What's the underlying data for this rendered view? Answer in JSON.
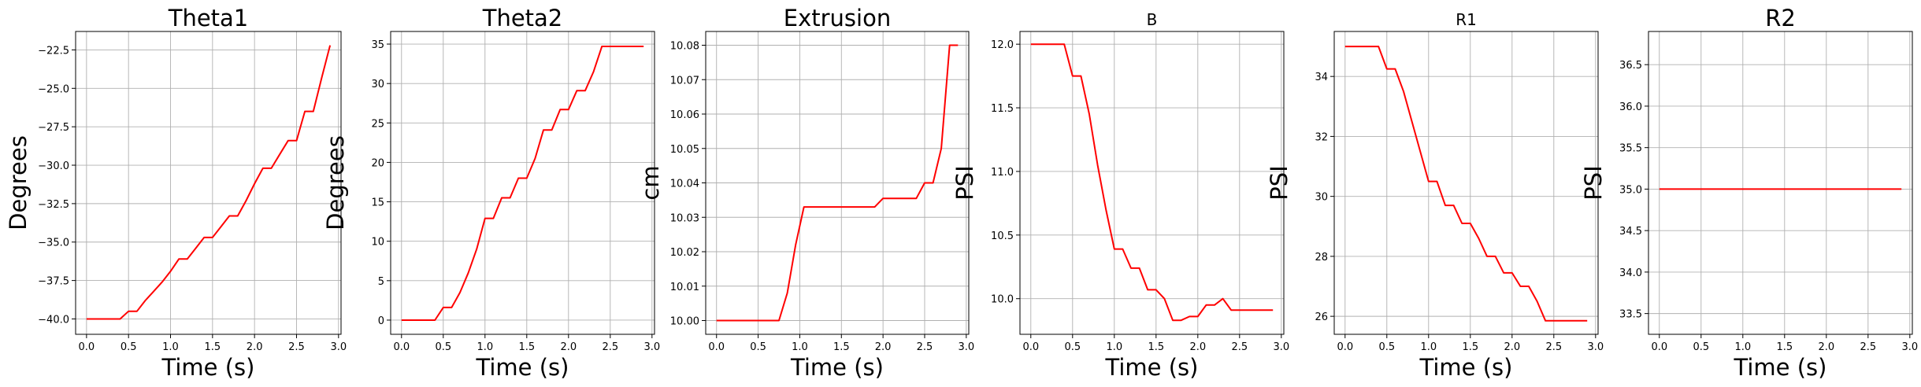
{
  "chart_data": [
    {
      "type": "line",
      "title": "Theta1",
      "xlabel": "Time (s)",
      "ylabel": "Degrees",
      "xlim": [
        -0.13,
        3.03
      ],
      "ylim": [
        -41.0,
        -21.3
      ],
      "xticks": [
        0.0,
        0.5,
        1.0,
        1.5,
        2.0,
        2.5,
        3.0
      ],
      "xtick_labels": [
        "0.0",
        "0.5",
        "1.0",
        "1.5",
        "2.0",
        "2.5",
        "3.0"
      ],
      "yticks": [
        -40.0,
        -37.5,
        -35.0,
        -32.5,
        -30.0,
        -27.5,
        -25.0,
        -22.5
      ],
      "ytick_labels": [
        "−40.0",
        "−37.5",
        "−35.0",
        "−32.5",
        "−30.0",
        "−27.5",
        "−25.0",
        "−22.5"
      ],
      "grid": true,
      "series": [
        {
          "color": "#ff0000",
          "x": [
            0.0,
            0.1,
            0.2,
            0.3,
            0.4,
            0.5,
            0.6,
            0.7,
            0.8,
            0.9,
            1.0,
            1.1,
            1.2,
            1.3,
            1.4,
            1.5,
            1.6,
            1.7,
            1.8,
            1.9,
            2.0,
            2.1,
            2.2,
            2.3,
            2.4,
            2.5,
            2.6,
            2.7,
            2.8,
            2.9
          ],
          "y": [
            -40.0,
            -40.0,
            -40.0,
            -40.0,
            -40.0,
            -39.5,
            -39.5,
            -38.8,
            -38.2,
            -37.6,
            -36.9,
            -36.1,
            -36.1,
            -35.4,
            -34.7,
            -34.7,
            -34.0,
            -33.3,
            -33.3,
            -32.3,
            -31.2,
            -30.2,
            -30.2,
            -29.3,
            -28.4,
            -28.4,
            -26.5,
            -26.5,
            -24.3,
            -22.2
          ]
        }
      ]
    },
    {
      "type": "line",
      "title": "Theta2",
      "xlabel": "Time (s)",
      "ylabel": "Degrees",
      "xlim": [
        -0.13,
        3.03
      ],
      "ylim": [
        -1.8,
        36.6
      ],
      "xticks": [
        0.0,
        0.5,
        1.0,
        1.5,
        2.0,
        2.5,
        3.0
      ],
      "xtick_labels": [
        "0.0",
        "0.5",
        "1.0",
        "1.5",
        "2.0",
        "2.5",
        "3.0"
      ],
      "yticks": [
        0,
        5,
        10,
        15,
        20,
        25,
        30,
        35
      ],
      "ytick_labels": [
        "0",
        "5",
        "10",
        "15",
        "20",
        "25",
        "30",
        "35"
      ],
      "grid": true,
      "series": [
        {
          "color": "#ff0000",
          "x": [
            0.0,
            0.1,
            0.2,
            0.3,
            0.4,
            0.5,
            0.6,
            0.7,
            0.8,
            0.9,
            1.0,
            1.1,
            1.2,
            1.3,
            1.4,
            1.5,
            1.6,
            1.7,
            1.8,
            1.9,
            2.0,
            2.1,
            2.2,
            2.3,
            2.4,
            2.5,
            2.6,
            2.7,
            2.8,
            2.9
          ],
          "y": [
            0.0,
            0.0,
            0.0,
            0.0,
            0.0,
            1.6,
            1.6,
            3.5,
            6.0,
            9.0,
            12.9,
            12.9,
            15.5,
            15.5,
            18.0,
            18.0,
            20.5,
            24.1,
            24.1,
            26.7,
            26.7,
            29.1,
            29.1,
            31.5,
            34.7,
            34.7,
            34.7,
            34.7,
            34.7,
            34.7
          ]
        }
      ]
    },
    {
      "type": "line",
      "title": "Extrusion",
      "xlabel": "Time (s)",
      "ylabel": "cm",
      "xlim": [
        -0.13,
        3.03
      ],
      "ylim": [
        9.996,
        10.084
      ],
      "xticks": [
        0.0,
        0.5,
        1.0,
        1.5,
        2.0,
        2.5,
        3.0
      ],
      "xtick_labels": [
        "0.0",
        "0.5",
        "1.0",
        "1.5",
        "2.0",
        "2.5",
        "3.0"
      ],
      "yticks": [
        10.0,
        10.01,
        10.02,
        10.03,
        10.04,
        10.05,
        10.06,
        10.07,
        10.08
      ],
      "ytick_labels": [
        "10.00",
        "10.01",
        "10.02",
        "10.03",
        "10.04",
        "10.05",
        "10.06",
        "10.07",
        "10.08"
      ],
      "grid": true,
      "series": [
        {
          "color": "#ff0000",
          "x": [
            0.0,
            0.2,
            0.4,
            0.6,
            0.75,
            0.85,
            0.95,
            1.05,
            1.1,
            1.3,
            1.5,
            1.7,
            1.9,
            2.0,
            2.2,
            2.4,
            2.5,
            2.6,
            2.7,
            2.8,
            2.9
          ],
          "y": [
            10.0,
            10.0,
            10.0,
            10.0,
            10.0,
            10.008,
            10.022,
            10.033,
            10.033,
            10.033,
            10.033,
            10.033,
            10.033,
            10.0355,
            10.0355,
            10.0355,
            10.04,
            10.04,
            10.05,
            10.08,
            10.08
          ]
        }
      ]
    },
    {
      "type": "line",
      "title": "B",
      "xlabel": "Time (s)",
      "ylabel": "PSI",
      "xlim": [
        -0.13,
        3.03
      ],
      "ylim": [
        9.72,
        12.1
      ],
      "xticks": [
        0.0,
        0.5,
        1.0,
        1.5,
        2.0,
        2.5,
        3.0
      ],
      "xtick_labels": [
        "0.0",
        "0.5",
        "1.0",
        "1.5",
        "2.0",
        "2.5",
        "3.0"
      ],
      "yticks": [
        10.0,
        10.5,
        11.0,
        11.5,
        12.0
      ],
      "ytick_labels": [
        "10.0",
        "10.5",
        "11.0",
        "11.5",
        "12.0"
      ],
      "grid": true,
      "series": [
        {
          "color": "#ff0000",
          "x": [
            0.0,
            0.1,
            0.2,
            0.3,
            0.4,
            0.5,
            0.6,
            0.7,
            0.8,
            0.9,
            1.0,
            1.1,
            1.2,
            1.3,
            1.4,
            1.5,
            1.6,
            1.7,
            1.8,
            1.9,
            2.0,
            2.1,
            2.2,
            2.3,
            2.4,
            2.5,
            2.6,
            2.7,
            2.8,
            2.9
          ],
          "y": [
            12.0,
            12.0,
            12.0,
            12.0,
            12.0,
            11.75,
            11.75,
            11.45,
            11.05,
            10.7,
            10.39,
            10.39,
            10.24,
            10.24,
            10.07,
            10.07,
            10.0,
            9.83,
            9.83,
            9.86,
            9.86,
            9.95,
            9.95,
            10.0,
            9.91,
            9.91,
            9.91,
            9.91,
            9.91,
            9.91
          ]
        }
      ]
    },
    {
      "type": "line",
      "title": "R1",
      "xlabel": "Time (s)",
      "ylabel": "PSI",
      "xlim": [
        -0.13,
        3.03
      ],
      "ylim": [
        25.4,
        35.5
      ],
      "xticks": [
        0.0,
        0.5,
        1.0,
        1.5,
        2.0,
        2.5,
        3.0
      ],
      "xtick_labels": [
        "0.0",
        "0.5",
        "1.0",
        "1.5",
        "2.0",
        "2.5",
        "3.0"
      ],
      "yticks": [
        26,
        28,
        30,
        32,
        34
      ],
      "ytick_labels": [
        "26",
        "28",
        "30",
        "32",
        "34"
      ],
      "grid": true,
      "series": [
        {
          "color": "#ff0000",
          "x": [
            0.0,
            0.1,
            0.2,
            0.3,
            0.4,
            0.5,
            0.6,
            0.7,
            0.8,
            0.9,
            1.0,
            1.1,
            1.2,
            1.3,
            1.4,
            1.5,
            1.6,
            1.7,
            1.8,
            1.9,
            2.0,
            2.1,
            2.2,
            2.3,
            2.4,
            2.5,
            2.6,
            2.7,
            2.8,
            2.9
          ],
          "y": [
            35.0,
            35.0,
            35.0,
            35.0,
            35.0,
            34.25,
            34.25,
            33.5,
            32.5,
            31.5,
            30.5,
            30.5,
            29.7,
            29.7,
            29.1,
            29.1,
            28.6,
            28.0,
            28.0,
            27.45,
            27.45,
            27.0,
            27.0,
            26.5,
            25.85,
            25.85,
            25.85,
            25.85,
            25.85,
            25.85
          ]
        }
      ]
    },
    {
      "type": "line",
      "title": "R2",
      "xlabel": "Time (s)",
      "ylabel": "PSI",
      "xlim": [
        -0.13,
        3.03
      ],
      "ylim": [
        33.25,
        36.9
      ],
      "xticks": [
        0.0,
        0.5,
        1.0,
        1.5,
        2.0,
        2.5,
        3.0
      ],
      "xtick_labels": [
        "0.0",
        "0.5",
        "1.0",
        "1.5",
        "2.0",
        "2.5",
        "3.0"
      ],
      "yticks": [
        33.5,
        34.0,
        34.5,
        35.0,
        35.5,
        36.0,
        36.5
      ],
      "ytick_labels": [
        "33.5",
        "34.0",
        "34.5",
        "35.0",
        "35.5",
        "36.0",
        "36.5"
      ],
      "grid": true,
      "series": [
        {
          "color": "#ff0000",
          "x": [
            0.0,
            2.9
          ],
          "y": [
            35.0,
            35.0
          ]
        }
      ]
    }
  ]
}
